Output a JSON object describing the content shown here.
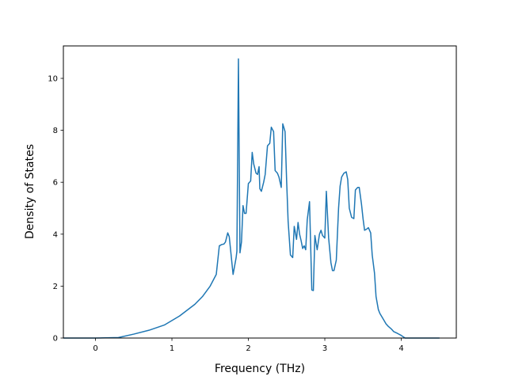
{
  "chart_data": {
    "type": "line",
    "title": "",
    "xlabel": "Frequency (THz)",
    "ylabel": "Density of States",
    "xlim": [
      -0.42,
      4.72
    ],
    "ylim": [
      0,
      11.25
    ],
    "xticks": [
      0,
      1,
      2,
      3,
      4
    ],
    "xtick_labels": [
      "0",
      "1",
      "2",
      "3",
      "4"
    ],
    "yticks": [
      0,
      2,
      4,
      6,
      8,
      10
    ],
    "ytick_labels": [
      "0",
      "2",
      "4",
      "6",
      "8",
      "10"
    ],
    "grid": false,
    "legend": "none",
    "line_color": "#1f77b4",
    "series": [
      {
        "x": [
          -0.42,
          0.0,
          0.3,
          0.5,
          0.7,
          0.9,
          1.1,
          1.3,
          1.4,
          1.5,
          1.58,
          1.6,
          1.62,
          1.65,
          1.68,
          1.7,
          1.73,
          1.75,
          1.8,
          1.84,
          1.85,
          1.87,
          1.89,
          1.91,
          1.93,
          1.95,
          1.97,
          2.0,
          2.03,
          2.05,
          2.07,
          2.1,
          2.12,
          2.14,
          2.15,
          2.17,
          2.2,
          2.22,
          2.25,
          2.28,
          2.3,
          2.33,
          2.35,
          2.38,
          2.4,
          2.43,
          2.45,
          2.48,
          2.5,
          2.52,
          2.55,
          2.58,
          2.6,
          2.63,
          2.65,
          2.67,
          2.69,
          2.71,
          2.73,
          2.75,
          2.77,
          2.8,
          2.83,
          2.85,
          2.87,
          2.9,
          2.93,
          2.95,
          2.97,
          3.0,
          3.02,
          3.05,
          3.08,
          3.1,
          3.12,
          3.15,
          3.18,
          3.2,
          3.22,
          3.25,
          3.28,
          3.3,
          3.32,
          3.35,
          3.38,
          3.4,
          3.43,
          3.45,
          3.48,
          3.5,
          3.52,
          3.55,
          3.57,
          3.6,
          3.62,
          3.65,
          3.67,
          3.7,
          3.72,
          3.75,
          3.78,
          3.8,
          3.83,
          3.87,
          3.9,
          3.95,
          4.0,
          4.05,
          4.08,
          4.1,
          4.2,
          4.3,
          4.5
        ],
        "y": [
          0.0,
          0.0,
          0.02,
          0.15,
          0.3,
          0.5,
          0.85,
          1.3,
          1.6,
          2.0,
          2.45,
          3.0,
          3.55,
          3.6,
          3.62,
          3.7,
          4.05,
          3.9,
          2.45,
          3.1,
          3.35,
          10.75,
          3.28,
          3.7,
          5.1,
          4.8,
          4.8,
          5.95,
          6.05,
          7.15,
          6.7,
          6.35,
          6.3,
          6.6,
          5.75,
          5.65,
          6.0,
          6.3,
          7.4,
          7.5,
          8.12,
          7.95,
          6.45,
          6.35,
          6.2,
          5.8,
          8.25,
          7.95,
          6.1,
          4.5,
          3.2,
          3.1,
          4.3,
          3.8,
          4.45,
          4.0,
          3.75,
          3.45,
          3.55,
          3.4,
          4.55,
          5.25,
          1.85,
          1.83,
          3.95,
          3.4,
          4.0,
          4.15,
          3.95,
          3.85,
          5.65,
          3.85,
          2.9,
          2.6,
          2.6,
          3.0,
          5.0,
          5.85,
          6.2,
          6.35,
          6.4,
          6.1,
          5.0,
          4.65,
          4.6,
          5.7,
          5.8,
          5.8,
          5.15,
          4.6,
          4.15,
          4.2,
          4.25,
          4.05,
          3.2,
          2.5,
          1.6,
          1.1,
          0.95,
          0.8,
          0.65,
          0.55,
          0.45,
          0.35,
          0.25,
          0.18,
          0.1,
          0.0,
          0.0,
          0.0,
          0.0,
          0.0,
          0.0
        ]
      }
    ]
  }
}
